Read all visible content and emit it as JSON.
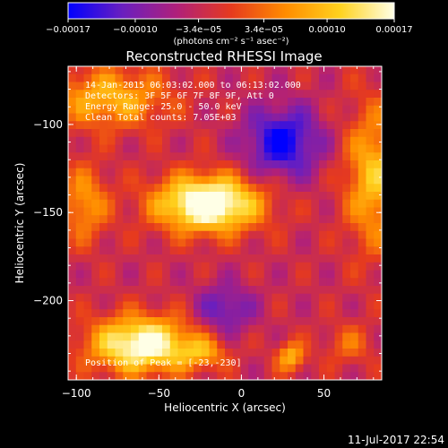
{
  "chart_data": {
    "type": "heatmap",
    "title": "Reconstructed RHESSI Image",
    "xlabel": "Heliocentric X (arcsec)",
    "ylabel": "Heliocentric Y (arcsec)",
    "xlim": [
      -105,
      85
    ],
    "ylim": [
      -245,
      -67
    ],
    "x_ticks": [
      -100,
      -50,
      0,
      50
    ],
    "x_tick_labels": [
      "−100",
      "−50",
      "0",
      "50"
    ],
    "y_ticks": [
      -100,
      -150,
      -200
    ],
    "y_tick_labels": [
      "−100",
      "−150",
      "−200"
    ],
    "colorbar": {
      "colormap": "blue-purple-red-yellow-white",
      "stops": [
        "#0000ff",
        "#6a1fbf",
        "#b0207a",
        "#e63a1e",
        "#ff8c00",
        "#ffd21e",
        "#ffffe6"
      ],
      "range": [
        -0.00017,
        0.00017
      ],
      "tick_labels": [
        "−0.00017",
        "−0.00010",
        "−3.4e−05",
        "3.4e−05",
        "0.00010",
        "0.00017"
      ],
      "tick_values": [
        -0.00017,
        -0.0001,
        -3.4e-05,
        3.4e-05,
        0.0001,
        0.00017
      ],
      "units": "(photons cm⁻² s⁻¹ asec⁻²)"
    },
    "annotations": [
      "14-Jan-2015 06:03:02.000 to 06:13:02.000",
      "Detectors: 3F 5F 6F 7F 8F 9F, Att 0",
      "Energy Range: 25.0 - 50.0 keV",
      "Clean     Total counts: 7.05E+03",
      "Position of Peak = [-23,-230]"
    ],
    "background_level": -3e-05,
    "sources": [
      {
        "name": "source-lower-left",
        "x": -60,
        "y": -225,
        "sx": 22,
        "sy": 11,
        "amp": 0.00022
      },
      {
        "name": "source-lower-left-core",
        "x": -23,
        "y": -230,
        "sx": 10,
        "sy": 6,
        "amp": 8e-05
      },
      {
        "name": "source-center",
        "x": -20,
        "y": -145,
        "sx": 22,
        "sy": 11,
        "amp": 0.00025
      },
      {
        "name": "source-upper-left",
        "x": -80,
        "y": -85,
        "sx": 25,
        "sy": 12,
        "amp": 0.00012
      },
      {
        "name": "source-arc-left",
        "x": -95,
        "y": -145,
        "sx": 10,
        "sy": 15,
        "amp": 0.0001
      },
      {
        "name": "source-right",
        "x": 80,
        "y": -130,
        "sx": 12,
        "sy": 28,
        "amp": 0.00013
      },
      {
        "name": "source-small-right",
        "x": 30,
        "y": -232,
        "sx": 6,
        "sy": 6,
        "amp": 0.00012
      },
      {
        "name": "source-lower-right",
        "x": 65,
        "y": -225,
        "sx": 10,
        "sy": 8,
        "amp": 6e-05
      },
      {
        "name": "depression-upper",
        "x": 25,
        "y": -110,
        "sx": 16,
        "sy": 14,
        "amp": -0.00014
      },
      {
        "name": "depression-mid",
        "x": -10,
        "y": -205,
        "sx": 12,
        "sy": 10,
        "amp": -9e-05
      }
    ],
    "grid": false
  },
  "footer": {
    "date": "11-Jul-2017 22:54"
  }
}
